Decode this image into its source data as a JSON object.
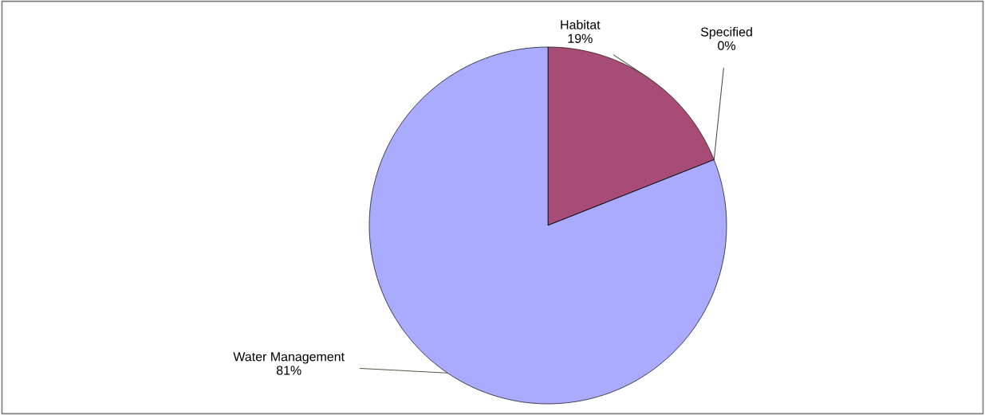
{
  "chart_data": {
    "type": "pie",
    "categories": [
      "Habitat",
      "Specified",
      "Water Management"
    ],
    "values": [
      19,
      0,
      81
    ],
    "value_labels": [
      "19%",
      "0%",
      "81%"
    ],
    "colors": [
      "#a64c77",
      "#ffffcc",
      "#aaaaff"
    ]
  }
}
